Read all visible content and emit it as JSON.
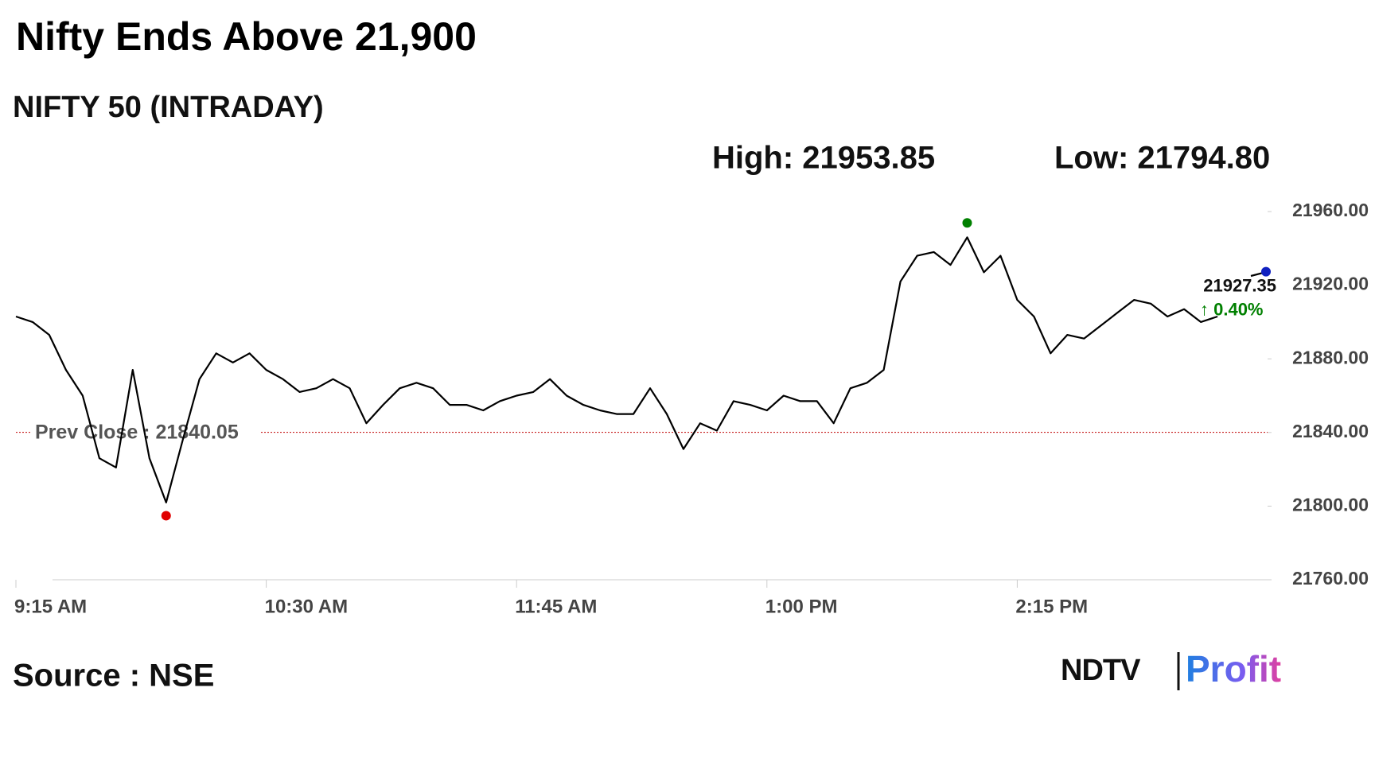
{
  "chart_data": {
    "type": "line",
    "title": "Nifty Ends Above 21,900",
    "subtitle": "NIFTY 50 (INTRADAY)",
    "high": {
      "label": "High: 21953.85",
      "x": 840,
      "value": 21953.85,
      "color": "#008000"
    },
    "low": {
      "label": "Low: 21794.80",
      "x": 600,
      "value": 21794.8,
      "color": "#e00000"
    },
    "prev_close": {
      "label": "Prev Close : 21840.05",
      "value": 21840.05,
      "color": "#c00000"
    },
    "last": {
      "label": "21927.35",
      "change": "↑ 0.40%",
      "x": 930,
      "value": 21927.35,
      "color": "#1020c0",
      "change_color": "#008000"
    },
    "source": "Source : NSE",
    "logo": {
      "left": "NDTV",
      "right": "Profit"
    },
    "series": [
      {
        "name": "NIFTY 50",
        "color": "#000000",
        "x": [
          555,
          560,
          565,
          570,
          575,
          580,
          585,
          590,
          595,
          600,
          605,
          610,
          615,
          620,
          625,
          630,
          635,
          640,
          645,
          650,
          655,
          660,
          665,
          670,
          675,
          680,
          685,
          690,
          695,
          700,
          705,
          710,
          715,
          720,
          725,
          730,
          735,
          740,
          745,
          750,
          755,
          760,
          765,
          770,
          775,
          780,
          785,
          790,
          795,
          800,
          805,
          810,
          815,
          820,
          825,
          830,
          835,
          840,
          845,
          850,
          855,
          860,
          865,
          870,
          875,
          880,
          885,
          890,
          895,
          900,
          905,
          910,
          915,
          920,
          925,
          930
        ],
        "values": [
          21903,
          21900,
          21893,
          21874,
          21860,
          21826,
          21821,
          21874,
          21826,
          21802,
          21836,
          21869,
          21883,
          21878,
          21883,
          21874,
          21869,
          21862,
          21864,
          21869,
          21864,
          21845,
          21855,
          21864,
          21867,
          21864,
          21855,
          21855,
          21852,
          21857,
          21860,
          21862,
          21869,
          21860,
          21855,
          21852,
          21850,
          21850,
          21864,
          21850,
          21831,
          21845,
          21841,
          21857,
          21855,
          21852,
          21860,
          21857,
          21857,
          21845,
          21864,
          21867,
          21874,
          21922,
          21936,
          21938,
          21931,
          21946,
          21927,
          21936,
          21912,
          21903,
          21883,
          21893,
          21891,
          21898,
          21905,
          21912,
          21910,
          21903,
          21907,
          21900,
          21903,
          null,
          21925,
          21927.35
        ]
      }
    ],
    "xlim": [
      555,
      930
    ],
    "xticks": [
      {
        "value": 555,
        "label": "9:15 AM"
      },
      {
        "value": 630,
        "label": "10:30 AM"
      },
      {
        "value": 705,
        "label": "11:45 AM"
      },
      {
        "value": 780,
        "label": "1:00 PM"
      },
      {
        "value": 855,
        "label": "2:15 PM"
      }
    ],
    "ylim": [
      21760,
      21960
    ],
    "yticks": [
      {
        "value": 21760,
        "label": "21760.00"
      },
      {
        "value": 21800,
        "label": "21800.00"
      },
      {
        "value": 21840,
        "label": "21840.00"
      },
      {
        "value": 21880,
        "label": "21880.00"
      },
      {
        "value": 21920,
        "label": "21920.00"
      },
      {
        "value": 21960,
        "label": "21960.00"
      }
    ]
  }
}
